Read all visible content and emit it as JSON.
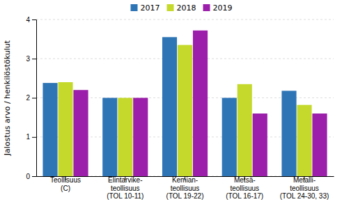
{
  "chart_data": {
    "type": "bar",
    "ylabel": "Jalostus arvo / henkilöstökulut",
    "categories": [
      "Teollisuus\n(C)",
      "Elintarvike-\nteollisuus\n(TOL 10-11)",
      "Kemian-\nteollisuus\n(TOL 19-22)",
      "Metsä-\nteollisuus\n(TOL 16-17)",
      "Metalli-\nteollisuus\n(TOL 24-30, 33)"
    ],
    "series": [
      {
        "name": "2017",
        "color": "#2E75B6",
        "values": [
          2.38,
          2.0,
          3.55,
          2.0,
          2.18
        ]
      },
      {
        "name": "2018",
        "color": "#C5D92D",
        "values": [
          2.4,
          2.0,
          3.35,
          2.35,
          1.82
        ]
      },
      {
        "name": "2019",
        "color": "#9B1FAA",
        "values": [
          2.2,
          2.0,
          3.72,
          1.6,
          1.6
        ]
      }
    ],
    "ylim": [
      0,
      4
    ],
    "yticks": [
      0,
      1,
      2,
      3,
      4
    ],
    "grid": true,
    "legend": "upper center"
  }
}
